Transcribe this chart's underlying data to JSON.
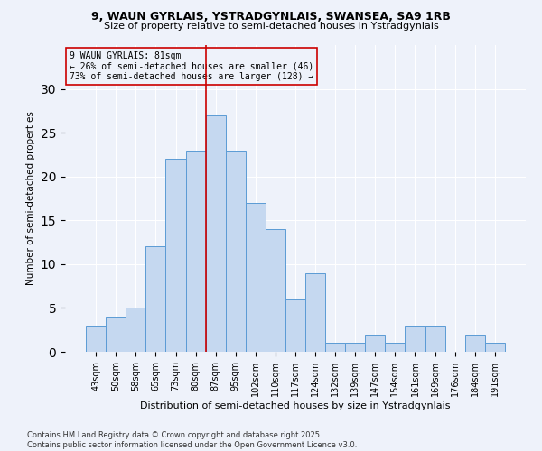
{
  "title1": "9, WAUN GYRLAIS, YSTRADGYNLAIS, SWANSEA, SA9 1RB",
  "title2": "Size of property relative to semi-detached houses in Ystradgynlais",
  "xlabel": "Distribution of semi-detached houses by size in Ystradgynlais",
  "ylabel": "Number of semi-detached properties",
  "bar_labels": [
    "43sqm",
    "50sqm",
    "58sqm",
    "65sqm",
    "73sqm",
    "80sqm",
    "87sqm",
    "95sqm",
    "102sqm",
    "110sqm",
    "117sqm",
    "124sqm",
    "132sqm",
    "139sqm",
    "147sqm",
    "154sqm",
    "161sqm",
    "169sqm",
    "176sqm",
    "184sqm",
    "191sqm"
  ],
  "bar_values": [
    3,
    4,
    5,
    12,
    22,
    23,
    27,
    23,
    17,
    14,
    6,
    9,
    1,
    1,
    2,
    1,
    3,
    3,
    0,
    2,
    1
  ],
  "bar_color": "#c5d8f0",
  "bar_edge_color": "#5b9bd5",
  "vline_x": 5.5,
  "vline_color": "#cc0000",
  "annotation_title": "9 WAUN GYRLAIS: 81sqm",
  "annotation_line1": "← 26% of semi-detached houses are smaller (46)",
  "annotation_line2": "73% of semi-detached houses are larger (128) →",
  "annotation_box_color": "#cc0000",
  "ylim": [
    0,
    35
  ],
  "yticks": [
    0,
    5,
    10,
    15,
    20,
    25,
    30
  ],
  "footnote1": "Contains HM Land Registry data © Crown copyright and database right 2025.",
  "footnote2": "Contains public sector information licensed under the Open Government Licence v3.0.",
  "background_color": "#eef2fa"
}
